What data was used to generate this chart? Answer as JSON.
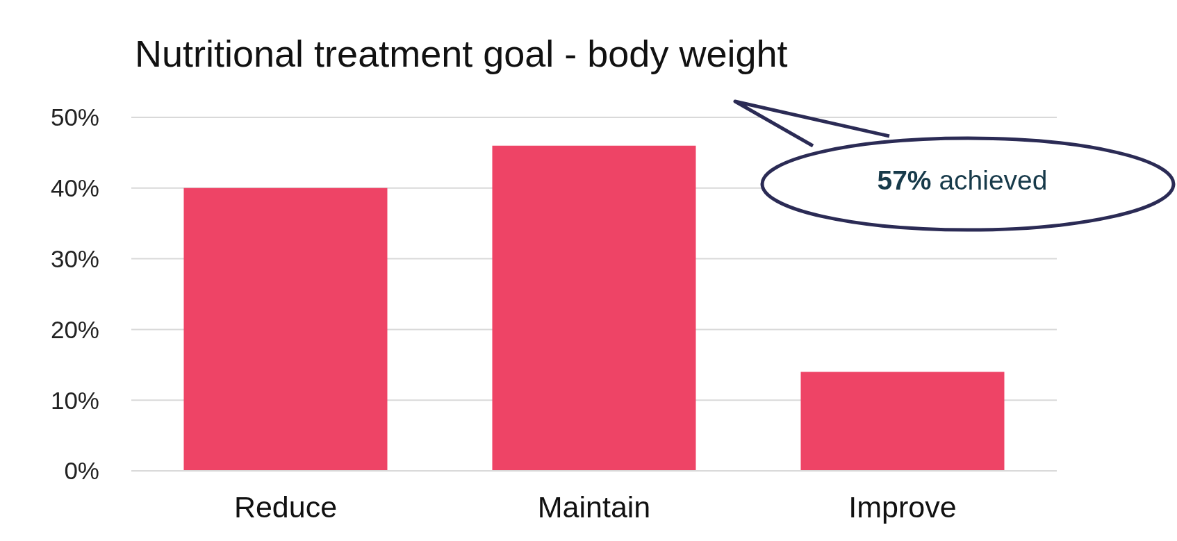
{
  "chart_data": {
    "type": "bar",
    "title": "Nutritional treatment goal - body weight",
    "categories": [
      "Reduce",
      "Maintain",
      "Improve"
    ],
    "values": [
      40,
      46,
      14
    ],
    "color": "#ee4466",
    "ylim": [
      0,
      50
    ],
    "yticks": [
      {
        "value": 0,
        "label": "0%"
      },
      {
        "value": 10,
        "label": "10%"
      },
      {
        "value": 20,
        "label": "20%"
      },
      {
        "value": 30,
        "label": "30%"
      },
      {
        "value": 40,
        "label": "40%"
      },
      {
        "value": 50,
        "label": "50%"
      }
    ],
    "grid": "y",
    "annotations": [
      "57% achieved"
    ]
  }
}
